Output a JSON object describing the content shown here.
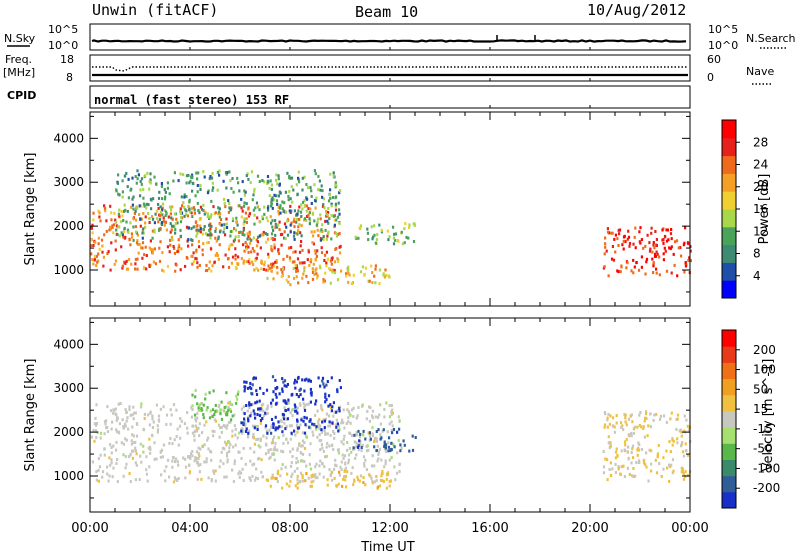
{
  "header": {
    "station": "Unwin (fitACF)",
    "beam": "Beam 10",
    "date": "10/Aug/2012"
  },
  "top_panels": {
    "nsky_label": "N.Sky",
    "nsearch_label": "N.Search",
    "noise_ticks": [
      "10^5",
      "10^0"
    ],
    "freq_label": "Freq.",
    "freq_unit": "[MHz]",
    "freq_ticks": [
      "18",
      "8"
    ],
    "nave_label": "Nave",
    "nave_ticks": [
      "60",
      "0"
    ],
    "cpid_label": "CPID",
    "cpid_text": "normal (fast stereo) 153 RF"
  },
  "power_panel": {
    "ylabel": "Slant Range [km]",
    "yticks": [
      "1000",
      "2000",
      "3000",
      "4000"
    ],
    "colorbar_label": "Power [dB]",
    "colorbar_ticks": [
      "4",
      "8",
      "12",
      "16",
      "20",
      "24",
      "28"
    ],
    "colorbar_colors": [
      "#0000ff",
      "#1e4ea8",
      "#3f8a73",
      "#4aa35a",
      "#a8d84a",
      "#f0d030",
      "#f5a024",
      "#f06a1c",
      "#e8201c",
      "#ff0000"
    ]
  },
  "velocity_panel": {
    "ylabel": "Slant Range [km]",
    "yticks": [
      "1000",
      "2000",
      "3000",
      "4000"
    ],
    "colorbar_label": "Velocity [m s^-1]",
    "colorbar_ticks": [
      "200",
      "100",
      "50",
      "15",
      "-15",
      "-50",
      "-100",
      "-200"
    ],
    "colorbar_colors": [
      "#1830c8",
      "#305c98",
      "#3c8a6c",
      "#5ab84a",
      "#a6e070",
      "#c8c8c0",
      "#f0c040",
      "#f0a020",
      "#f07018",
      "#e83a18",
      "#ff0000"
    ]
  },
  "x_axis": {
    "label": "Time UT",
    "ticks": [
      "00:00",
      "04:00",
      "08:00",
      "12:00",
      "16:00",
      "20:00",
      "00:00"
    ]
  },
  "chart_data": [
    {
      "type": "heatmap",
      "title": "Power [dB]",
      "xlabel": "Time UT",
      "ylabel": "Slant Range [km]",
      "xlim": [
        "00:00",
        "24:00"
      ],
      "ylim": [
        180,
        4600
      ],
      "clim": [
        0,
        30
      ],
      "features": [
        {
          "start_h": 0.0,
          "end_h": 10.0,
          "range_start_km": 1000,
          "range_end_km": 2500,
          "value": 22
        },
        {
          "start_h": 1.0,
          "end_h": 10.0,
          "range_start_km": 1700,
          "range_end_km": 3300,
          "value": 10
        },
        {
          "start_h": 7.0,
          "end_h": 12.0,
          "range_start_km": 700,
          "range_end_km": 1150,
          "value": 18
        },
        {
          "start_h": 10.5,
          "end_h": 13.0,
          "range_start_km": 1600,
          "range_end_km": 2100,
          "value": 12
        },
        {
          "start_h": 20.5,
          "end_h": 24.0,
          "range_start_km": 900,
          "range_end_km": 2000,
          "value": 26
        }
      ]
    },
    {
      "type": "heatmap",
      "title": "Velocity [m s^-1]",
      "xlabel": "Time UT",
      "ylabel": "Slant Range [km]",
      "xlim": [
        "00:00",
        "24:00"
      ],
      "ylim": [
        180,
        4600
      ],
      "clim": [
        -200,
        200
      ],
      "features": [
        {
          "start_h": 0.0,
          "end_h": 12.5,
          "range_start_km": 900,
          "range_end_km": 2700,
          "value": 0
        },
        {
          "start_h": 6.0,
          "end_h": 10.0,
          "range_start_km": 2000,
          "range_end_km": 3300,
          "value": -180
        },
        {
          "start_h": 4.0,
          "end_h": 6.0,
          "range_start_km": 2300,
          "range_end_km": 3000,
          "value": -60
        },
        {
          "start_h": 10.5,
          "end_h": 13.0,
          "range_start_km": 1600,
          "range_end_km": 2100,
          "value": -150
        },
        {
          "start_h": 7.0,
          "end_h": 12.0,
          "range_start_km": 750,
          "range_end_km": 1150,
          "value": 40
        },
        {
          "start_h": 20.5,
          "end_h": 24.0,
          "range_start_km": 900,
          "range_end_km": 2500,
          "value": 20
        }
      ]
    }
  ]
}
